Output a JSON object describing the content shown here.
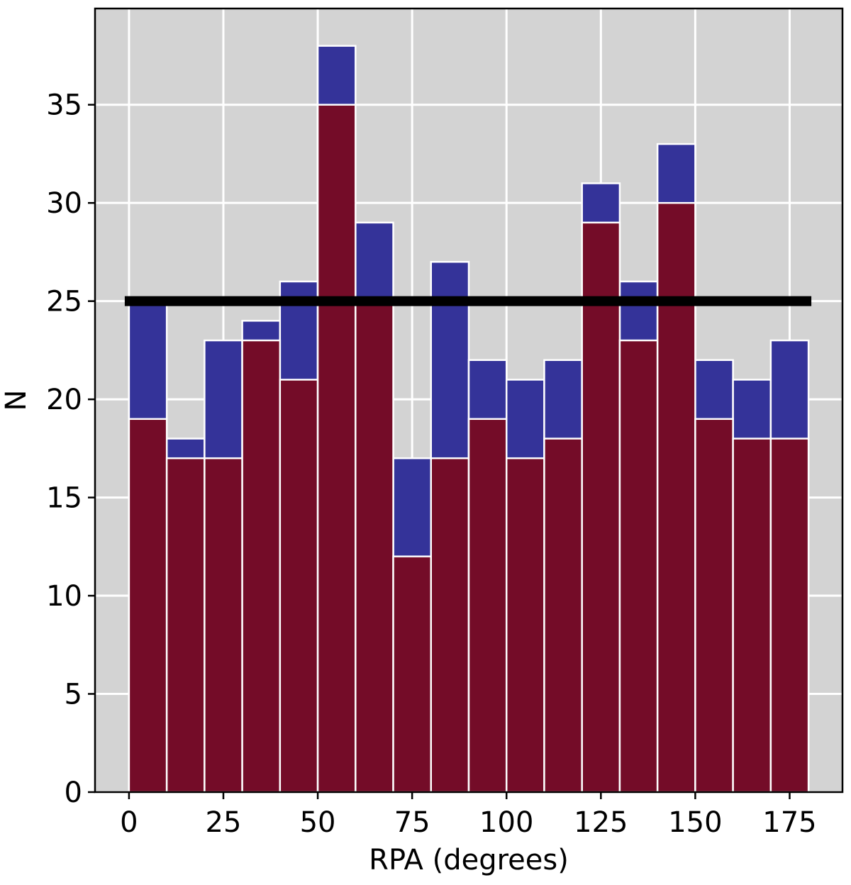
{
  "chart_data": {
    "type": "bar",
    "title": "",
    "xlabel": "RPA (degrees)",
    "ylabel": "N",
    "xlim": [
      -9,
      189
    ],
    "ylim": [
      0,
      39.9
    ],
    "xticks": [
      0,
      25,
      50,
      75,
      100,
      125,
      150,
      175
    ],
    "yticks": [
      0,
      5,
      10,
      15,
      20,
      25,
      30,
      35
    ],
    "grid": true,
    "legend": "none",
    "bins": [
      [
        0,
        10
      ],
      [
        10,
        20
      ],
      [
        20,
        30
      ],
      [
        30,
        40
      ],
      [
        40,
        50
      ],
      [
        50,
        60
      ],
      [
        60,
        70
      ],
      [
        70,
        80
      ],
      [
        80,
        90
      ],
      [
        90,
        100
      ],
      [
        100,
        110
      ],
      [
        110,
        120
      ],
      [
        120,
        130
      ],
      [
        130,
        140
      ],
      [
        140,
        150
      ],
      [
        150,
        160
      ],
      [
        160,
        170
      ],
      [
        170,
        180
      ]
    ],
    "series": [
      {
        "color": "#343399",
        "values": [
          25,
          18,
          23,
          24,
          26,
          38,
          29,
          17,
          27,
          22,
          21,
          22,
          31,
          26,
          33,
          22,
          21,
          23
        ]
      },
      {
        "color": "#740c28",
        "values": [
          19,
          17,
          17,
          23,
          21,
          35,
          25,
          12,
          17,
          19,
          17,
          18,
          29,
          23,
          30,
          19,
          18,
          18
        ]
      }
    ],
    "reference_line": {
      "y": 25,
      "x_range": [
        0,
        180
      ],
      "color": "#000000"
    }
  },
  "colors": {
    "plot_background": "#d3d3d3",
    "grid": "#ffffff",
    "bar_edge": "#ffffff"
  }
}
